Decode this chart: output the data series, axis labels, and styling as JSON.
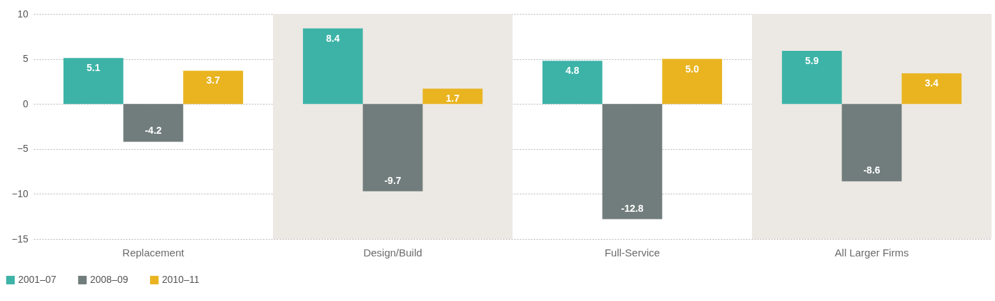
{
  "chart_data": {
    "type": "bar",
    "categories": [
      "Replacement",
      "Design/Build",
      "Full-Service",
      "All Larger Firms"
    ],
    "series": [
      {
        "name": "2001–07",
        "color": "#3db3a7",
        "values": [
          5.1,
          8.4,
          4.8,
          5.9
        ],
        "value_labels": [
          "5.1",
          "8.4",
          "4.8",
          "5.9"
        ]
      },
      {
        "name": "2008–09",
        "color": "#717d7c",
        "values": [
          -4.2,
          -9.7,
          -12.8,
          -8.6
        ],
        "value_labels": [
          "-4.2",
          "-9.7",
          "-12.8",
          "-8.6"
        ]
      },
      {
        "name": "2010–11",
        "color": "#e9b420",
        "values": [
          3.7,
          1.7,
          5.0,
          3.4
        ],
        "value_labels": [
          "3.7",
          "1.7",
          "5.0",
          "3.4"
        ]
      }
    ],
    "ylim": [
      -15,
      10
    ],
    "yticks": [
      -15,
      -10,
      -5,
      0,
      5,
      10
    ],
    "grid": "y",
    "legend": "bottom left",
    "bands": [
      {
        "axis": "x",
        "from": "Design/Build",
        "to": "Design/Build",
        "color": "#ece8e3"
      },
      {
        "axis": "x",
        "from": "All Larger Firms",
        "to": "All Larger Firms",
        "color": "#ece8e3"
      }
    ]
  }
}
